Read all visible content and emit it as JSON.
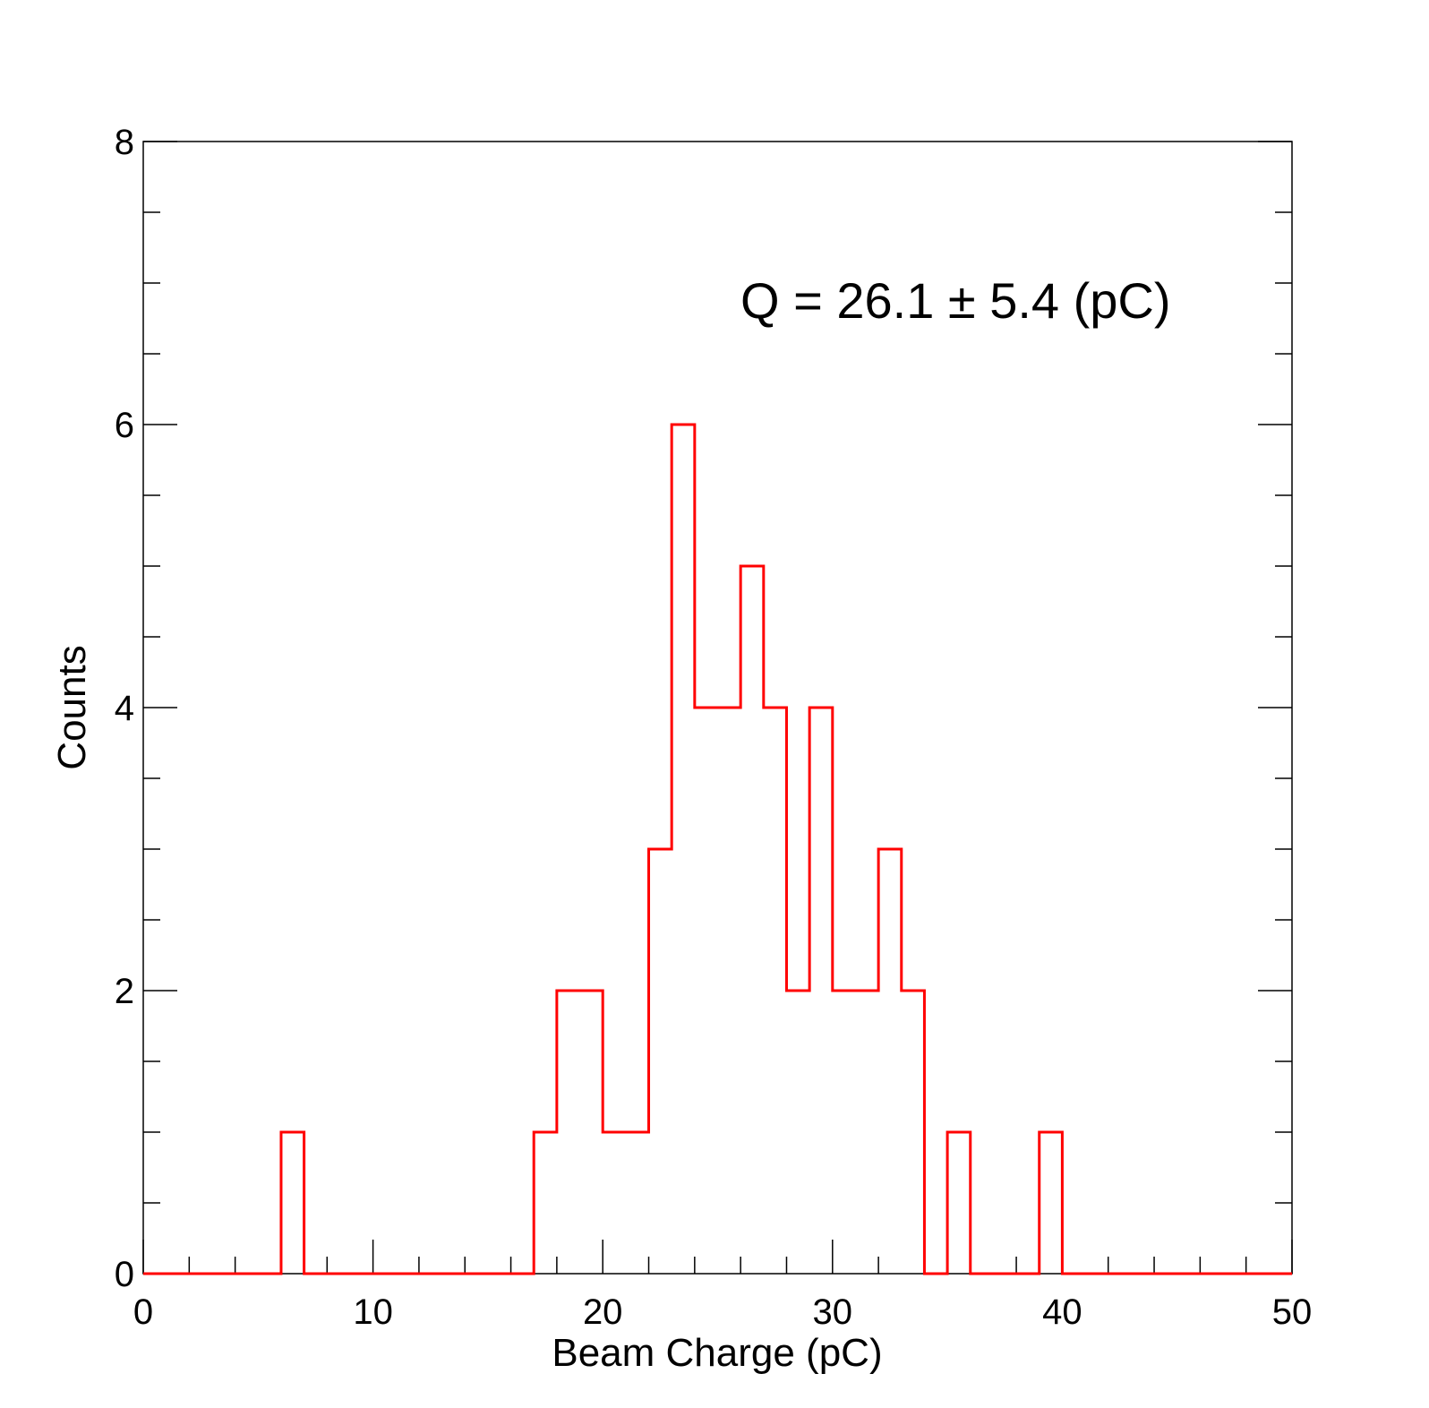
{
  "chart_data": {
    "type": "bar",
    "style": "step-histogram",
    "title": "",
    "xlabel": "Beam Charge (pC)",
    "ylabel": "Counts",
    "xlim": [
      0,
      50
    ],
    "ylim": [
      0,
      8
    ],
    "x_ticks": [
      0,
      10,
      20,
      30,
      40,
      50
    ],
    "y_ticks": [
      0,
      2,
      4,
      6,
      8
    ],
    "grid": false,
    "legend": "none",
    "bin_width": 1,
    "bin_edges_start": 0,
    "values": [
      0,
      0,
      0,
      0,
      0,
      0,
      1,
      0,
      0,
      0,
      0,
      0,
      0,
      0,
      0,
      0,
      0,
      1,
      2,
      2,
      1,
      1,
      3,
      6,
      4,
      4,
      5,
      4,
      2,
      4,
      2,
      2,
      3,
      2,
      0,
      1,
      0,
      0,
      0,
      1,
      0,
      0,
      0,
      0,
      0,
      0,
      0,
      0,
      0,
      0
    ],
    "line_color": "#ff0000",
    "annotation": "Q = 26.1 ± 5.4 (pC)"
  }
}
